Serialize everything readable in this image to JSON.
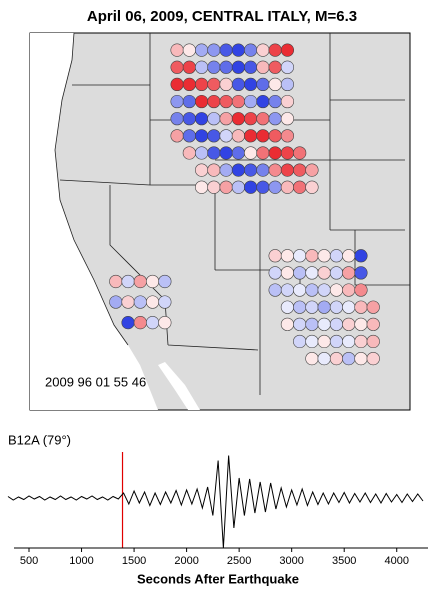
{
  "chart_data": [
    {
      "type": "map",
      "title": "April 06, 2009, CENTRAL ITALY, M=6.3",
      "timestamp": "2009 96 01 55 46",
      "xlim": [
        -125,
        -94
      ],
      "ylim": [
        28,
        50
      ],
      "colors": {
        "positive": "#e8141c",
        "negative": "#1a2ee0"
      },
      "stations": [
        {
          "lat": 49,
          "lon": [
            -113,
            -112,
            -111,
            -110,
            -109,
            -108,
            -107,
            -106,
            -105,
            -104
          ],
          "values": [
            0.3,
            0.1,
            -0.4,
            -0.5,
            -0.8,
            -0.9,
            -0.6,
            0.2,
            0.8,
            0.9
          ]
        },
        {
          "lat": 48,
          "lon": [
            -113,
            -112,
            -111,
            -110,
            -109,
            -108,
            -107,
            -106,
            -105,
            -104
          ],
          "values": [
            0.7,
            0.8,
            -0.3,
            -0.6,
            -0.7,
            -0.9,
            -0.8,
            0.3,
            0.7,
            -0.2
          ]
        },
        {
          "lat": 47,
          "lon": [
            -113,
            -112,
            -111,
            -110,
            -109,
            -108,
            -107,
            -106,
            -105,
            -104
          ],
          "values": [
            0.9,
            0.9,
            0.8,
            0.7,
            0.2,
            -0.8,
            -0.9,
            -0.7,
            0.1,
            -0.3
          ]
        },
        {
          "lat": 46,
          "lon": [
            -113,
            -112,
            -111,
            -110,
            -109,
            -108,
            -107,
            -106,
            -105,
            -104
          ],
          "values": [
            -0.5,
            -0.7,
            0.9,
            0.8,
            0.7,
            0.6,
            -0.4,
            -0.9,
            -0.6,
            0.2
          ]
        },
        {
          "lat": 45,
          "lon": [
            -113,
            -112,
            -111,
            -110,
            -109,
            -108,
            -107,
            -106,
            -105,
            -104
          ],
          "values": [
            -0.6,
            -0.8,
            -0.9,
            -0.3,
            0.4,
            0.9,
            0.8,
            0.6,
            -0.5,
            0.1
          ]
        },
        {
          "lat": 44,
          "lon": [
            -113,
            -112,
            -111,
            -110,
            -109,
            -108,
            -107,
            -106,
            -105,
            -104
          ],
          "values": [
            0.4,
            -0.7,
            -0.9,
            -0.8,
            -0.2,
            0.3,
            0.9,
            0.9,
            0.7,
            0.5
          ]
        },
        {
          "lat": 43,
          "lon": [
            -112,
            -111,
            -110,
            -109,
            -108,
            -107,
            -106,
            -105,
            -104,
            -103
          ],
          "values": [
            0.3,
            -0.3,
            -0.8,
            -0.9,
            -0.7,
            0.1,
            0.6,
            0.9,
            0.8,
            0.6
          ]
        },
        {
          "lat": 42,
          "lon": [
            -111,
            -110,
            -109,
            -108,
            -107,
            -106,
            -105,
            -104,
            -103,
            -102
          ],
          "values": [
            0.2,
            0.3,
            -0.4,
            -0.9,
            -0.8,
            -0.6,
            0.5,
            0.8,
            0.7,
            0.4
          ]
        },
        {
          "lat": 41,
          "lon": [
            -111,
            -110,
            -109,
            -108,
            -107,
            -106,
            -105,
            -104,
            -103,
            -102
          ],
          "values": [
            0.1,
            0.2,
            0.4,
            -0.3,
            -0.9,
            -0.8,
            -0.5,
            0.3,
            0.6,
            0.2
          ]
        },
        {
          "lat": 37,
          "lon": [
            -105,
            -104,
            -103,
            -102,
            -101,
            -100,
            -99,
            -98
          ],
          "values": [
            0.2,
            0.1,
            -0.1,
            0.3,
            0.1,
            -0.2,
            0.1,
            -0.9
          ]
        },
        {
          "lat": 36,
          "lon": [
            -105,
            -104,
            -103,
            -102,
            -101,
            -100,
            -99,
            -98
          ],
          "values": [
            -0.2,
            0.1,
            -0.3,
            -0.1,
            0.2,
            -0.2,
            0.4,
            -0.8
          ]
        },
        {
          "lat": 35,
          "lon": [
            -105,
            -104,
            -103,
            -102,
            -101,
            -100,
            -99,
            -98
          ],
          "values": [
            -0.3,
            -0.2,
            -0.1,
            -0.3,
            -0.2,
            0.1,
            0.3,
            0.5
          ]
        },
        {
          "lat": 34,
          "lon": [
            -104,
            -103,
            -102,
            -101,
            -100,
            -99,
            -98,
            -97
          ],
          "values": [
            -0.1,
            -0.3,
            -0.2,
            -0.4,
            -0.2,
            -0.1,
            0.3,
            0.4
          ]
        },
        {
          "lat": 33,
          "lon": [
            -104,
            -103,
            -102,
            -101,
            -100,
            -99,
            -98,
            -97
          ],
          "values": [
            0.1,
            -0.2,
            -0.3,
            -0.1,
            -0.2,
            0.2,
            0.1,
            0.3
          ]
        },
        {
          "lat": 32,
          "lon": [
            -103,
            -102,
            -101,
            -100,
            -99,
            -98,
            -97
          ],
          "values": [
            -0.2,
            -0.1,
            0.1,
            -0.2,
            -0.1,
            0.2,
            0.3
          ]
        },
        {
          "lat": 31,
          "lon": [
            -102,
            -101,
            -100,
            -99,
            -98,
            -97
          ],
          "values": [
            0.1,
            -0.1,
            0.2,
            -0.3,
            0.1,
            0.2
          ]
        },
        {
          "lat": 35.5,
          "lon": [
            -118,
            -117,
            -116,
            -115,
            -114
          ],
          "values": [
            0.3,
            -0.2,
            0.4,
            0.1,
            -0.3
          ]
        },
        {
          "lat": 34.3,
          "lon": [
            -118,
            -117,
            -116,
            -115,
            -114
          ],
          "values": [
            -0.4,
            0.2,
            -0.3,
            0.1,
            -0.2
          ]
        },
        {
          "lat": 33.1,
          "lon": [
            -117,
            -116,
            -115,
            -114
          ],
          "values": [
            -0.9,
            0.5,
            -0.2,
            0.1
          ]
        }
      ]
    },
    {
      "type": "line",
      "label": "B12A (79°)",
      "x_label": "Seconds After Earthquake",
      "color": "#000000",
      "marker": 1390,
      "marker_color": "#e00000",
      "xlim": [
        300,
        4250
      ],
      "ylim": [
        -1,
        1
      ],
      "xticks": [
        500,
        1000,
        1500,
        2000,
        2500,
        3000,
        3500,
        4000
      ],
      "x": [
        300,
        350,
        400,
        450,
        500,
        550,
        600,
        650,
        700,
        750,
        800,
        850,
        900,
        950,
        1000,
        1050,
        1100,
        1150,
        1200,
        1250,
        1300,
        1350,
        1400,
        1450,
        1500,
        1550,
        1600,
        1650,
        1700,
        1750,
        1800,
        1850,
        1900,
        1950,
        2000,
        2050,
        2100,
        2150,
        2200,
        2250,
        2300,
        2350,
        2400,
        2450,
        2500,
        2550,
        2600,
        2650,
        2700,
        2750,
        2800,
        2850,
        2900,
        2950,
        3000,
        3050,
        3100,
        3150,
        3200,
        3250,
        3300,
        3350,
        3400,
        3450,
        3500,
        3550,
        3600,
        3650,
        3700,
        3750,
        3800,
        3850,
        3900,
        3950,
        4000,
        4050,
        4100,
        4150,
        4200,
        4250
      ],
      "values": [
        0.03,
        -0.04,
        0.02,
        -0.03,
        0.04,
        -0.02,
        0.03,
        -0.04,
        0.02,
        -0.03,
        0.04,
        -0.03,
        0.02,
        -0.04,
        0.03,
        -0.02,
        0.04,
        -0.03,
        0.02,
        -0.04,
        0.03,
        -0.02,
        0.1,
        -0.12,
        0.14,
        -0.1,
        0.12,
        -0.15,
        0.1,
        -0.13,
        0.12,
        -0.1,
        0.15,
        -0.14,
        0.16,
        -0.12,
        0.18,
        -0.2,
        0.22,
        -0.35,
        0.75,
        -1.0,
        0.85,
        -0.6,
        0.4,
        -0.35,
        0.38,
        -0.3,
        0.32,
        -0.28,
        0.3,
        -0.22,
        0.2,
        -0.18,
        0.16,
        -0.14,
        0.18,
        -0.15,
        0.12,
        -0.13,
        0.1,
        -0.12,
        0.1,
        -0.09,
        0.11,
        -0.1,
        0.09,
        -0.08,
        0.1,
        -0.09,
        0.08,
        -0.1,
        0.09,
        -0.08,
        0.07,
        -0.09,
        0.08,
        -0.07,
        0.08,
        -0.06
      ]
    }
  ]
}
